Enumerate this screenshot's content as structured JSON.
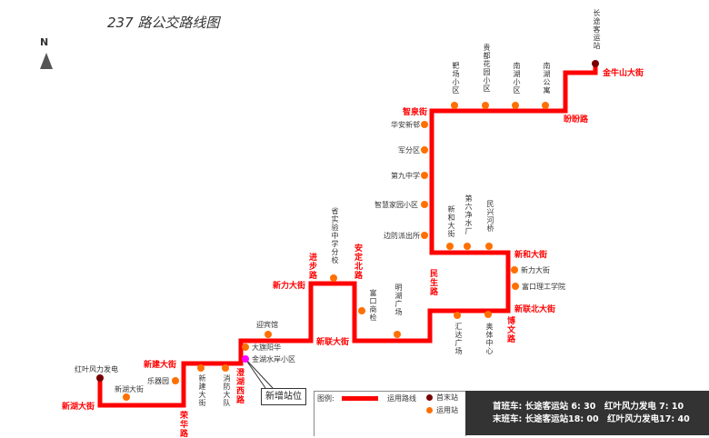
{
  "title": "237 路公交路线图",
  "north": "N",
  "colors": {
    "route": "#ff0000",
    "station": "#ff7000",
    "terminal": "#7a0000",
    "new_station": "#ff00ff"
  },
  "terminals": [
    {
      "name": "红叶风力发电"
    },
    {
      "name": "长途客运站"
    }
  ],
  "stations": [
    "新湖大街",
    "乐器园",
    "新建大街",
    "消防大队",
    "迎宾馆",
    "大旗阳华",
    "金湖水岸小区",
    "省实验中学分校",
    "富口商检",
    "明湖广场",
    "汇达广场",
    "奥体中心",
    "新力大街",
    "富口理工学院",
    "新和大街",
    "第六净水厂",
    "民兴河桥",
    "边防派出所",
    "智慧家园小区",
    "第九中学",
    "军分区",
    "华安新邨",
    "靶场小区",
    "贵都花园小区",
    "南湖小区",
    "南湖公寓"
  ],
  "roads": [
    "新湖大街",
    "新建大街",
    "荣华路",
    "澄湖西路",
    "新力大街",
    "进步路",
    "安定北路",
    "新联大街",
    "民生路",
    "新和大街",
    "新联北大街",
    "博文路",
    "智泉街",
    "盼盼路",
    "金牛山大街"
  ],
  "callout": "新增站位",
  "legend": {
    "title": "图例:",
    "route": "运用路线",
    "terminal": "首末站",
    "station": "运用站"
  },
  "schedule": {
    "first": "首班车: 长途客运站 6: 30　红叶风力发电 7: 10",
    "last": "末班车: 长途客运站18: 00　红叶风力发电17: 40"
  }
}
